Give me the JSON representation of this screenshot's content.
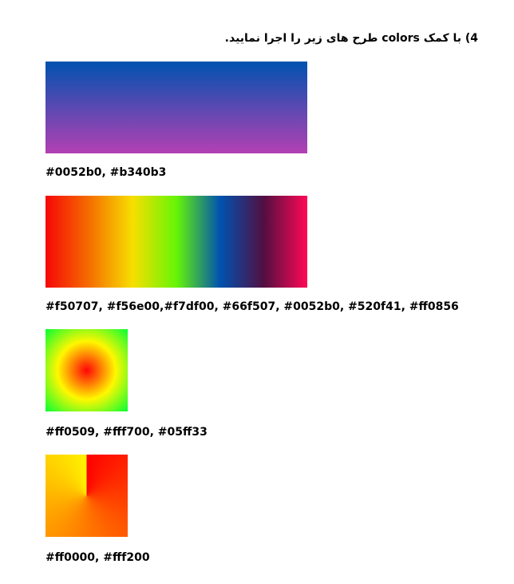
{
  "heading": "4) با کمک colors طرح های زیر را اجرا نمایید.",
  "items": [
    {
      "kind": "linear-gradient-vertical",
      "colors": [
        "#0052b0",
        "#b340b3"
      ],
      "caption": "#0052b0, #b340b3"
    },
    {
      "kind": "linear-gradient-horizontal",
      "colors": [
        "#f50707",
        "#f56e00",
        "#f7df00",
        "#66f507",
        "#0052b0",
        "#520f41",
        "#ff0856"
      ],
      "caption": "#f50707, #f56e00,#f7df00, #66f507, #0052b0, #520f41, #ff0856"
    },
    {
      "kind": "radial-gradient",
      "colors": [
        "#ff0509",
        "#fff700",
        "#05ff33"
      ],
      "caption": "#ff0509, #fff700, #05ff33"
    },
    {
      "kind": "conic-gradient",
      "colors": [
        "#ff0000",
        "#fff200"
      ],
      "caption": "#ff0000, #fff200"
    }
  ]
}
